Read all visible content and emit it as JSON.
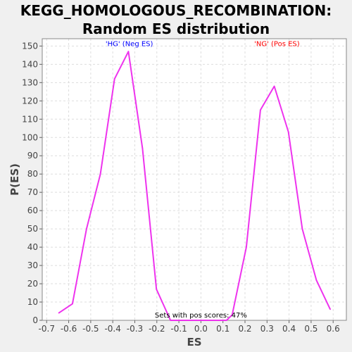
{
  "chart_data": {
    "type": "line",
    "title_line1": "KEGG_HOMOLOGOUS_RECOMBINATION:",
    "title_line2": "Random ES distribution",
    "xlabel": "ES",
    "ylabel": "P(ES)",
    "xlim": [
      -0.72,
      0.66
    ],
    "ylim": [
      0,
      154
    ],
    "xticks": [
      -0.7,
      -0.6,
      -0.5,
      -0.4,
      -0.3,
      -0.2,
      -0.1,
      0.0,
      0.1,
      0.2,
      0.3,
      0.4,
      0.5,
      0.6
    ],
    "xtick_labels": [
      "-0.7",
      "-0.6",
      "-0.5",
      "-0.4",
      "-0.3",
      "-0.2",
      "-0.1",
      "0.0",
      "0.1",
      "0.2",
      "0.3",
      "0.4",
      "0.5",
      "0.6"
    ],
    "yticks": [
      0,
      10,
      20,
      30,
      40,
      50,
      60,
      70,
      80,
      90,
      100,
      110,
      120,
      130,
      140,
      150
    ],
    "ytick_labels": [
      "0",
      "10",
      "20",
      "30",
      "40",
      "50",
      "60",
      "70",
      "80",
      "90",
      "100",
      "110",
      "120",
      "130",
      "140",
      "150"
    ],
    "grid": true,
    "series_color": "#ee33ee",
    "series": [
      {
        "x": [
          -0.645,
          -0.583,
          -0.519,
          -0.456,
          -0.392,
          -0.329,
          -0.265,
          -0.202,
          -0.138,
          -0.075,
          -0.011,
          0.052,
          0.116,
          0.142,
          0.206,
          0.27,
          0.333,
          0.397,
          0.46,
          0.524,
          0.587
        ],
        "values": [
          4,
          9,
          50,
          80,
          132,
          147,
          94,
          17,
          0,
          0,
          0,
          0,
          0,
          3,
          40,
          115,
          128,
          103,
          50,
          22,
          6
        ]
      }
    ],
    "annotations": [
      {
        "text": "'HG' (Neg ES)",
        "x": -0.325,
        "y": 150,
        "color": "#0000ff"
      },
      {
        "text": "'NG' (Pos ES)",
        "x": 0.345,
        "y": 150,
        "color": "#ff0000"
      },
      {
        "text": "Sets with pos scores: 47%",
        "x": 0.0,
        "y": 1.5,
        "color": "#000000"
      }
    ]
  }
}
